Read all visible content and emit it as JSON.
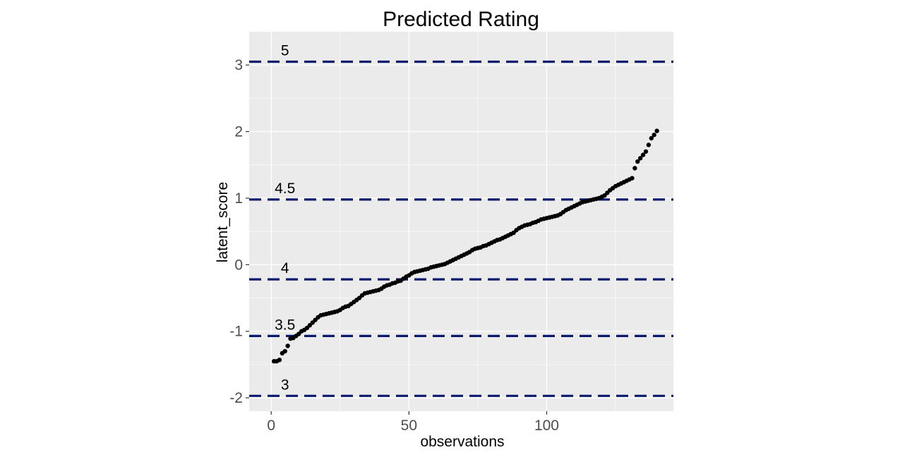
{
  "chart_data": {
    "type": "scatter",
    "title": "Predicted Rating",
    "xlabel": "observations",
    "ylabel": "latent_score",
    "xlim": [
      -8,
      146
    ],
    "ylim": [
      -2.2,
      3.5
    ],
    "x_ticks": [
      0,
      50,
      100
    ],
    "x_tick_labels": [
      "0",
      "50",
      "100"
    ],
    "y_ticks": [
      -2,
      -1,
      0,
      1,
      2,
      3
    ],
    "y_tick_labels": [
      "-2",
      "-1",
      "0",
      "1",
      "2",
      "3"
    ],
    "grid": true,
    "legend": "none",
    "point_color": "#000000",
    "threshold_color": "#0a1a6e",
    "panel_background": "#ebebeb",
    "thresholds": [
      {
        "label": "3",
        "y": -1.97
      },
      {
        "label": "3.5",
        "y": -1.07
      },
      {
        "label": "4",
        "y": -0.22
      },
      {
        "label": "4.5",
        "y": 0.98
      },
      {
        "label": "5",
        "y": 3.05
      }
    ],
    "series": [
      {
        "x": [
          1,
          2,
          3,
          4,
          5,
          6,
          7,
          8,
          9,
          10,
          11,
          12,
          13,
          14,
          15,
          16,
          17,
          18,
          19,
          20,
          21,
          22,
          23,
          24,
          25,
          26,
          27,
          28,
          29,
          30,
          31,
          32,
          33,
          34,
          35,
          36,
          37,
          38,
          39,
          40,
          41,
          42,
          43,
          44,
          45,
          46,
          47,
          48,
          49,
          50,
          51,
          52,
          53,
          54,
          55,
          56,
          57,
          58,
          59,
          60,
          61,
          62,
          63,
          64,
          65,
          66,
          67,
          68,
          69,
          70,
          71,
          72,
          73,
          74,
          75,
          76,
          77,
          78,
          79,
          80,
          81,
          82,
          83,
          84,
          85,
          86,
          87,
          88,
          89,
          90,
          91,
          92,
          93,
          94,
          95,
          96,
          97,
          98,
          99,
          100,
          101,
          102,
          103,
          104,
          105,
          106,
          107,
          108,
          109,
          110,
          111,
          112,
          113,
          114,
          115,
          116,
          117,
          118,
          119,
          120,
          121,
          122,
          123,
          124,
          125,
          126,
          127,
          128,
          129,
          130,
          131,
          132,
          133,
          134,
          135,
          136,
          137,
          138,
          139,
          140
        ],
        "y": [
          -1.45,
          -1.45,
          -1.43,
          -1.33,
          -1.3,
          -1.22,
          -1.11,
          -1.1,
          -1.07,
          -1.04,
          -1.0,
          -0.98,
          -0.95,
          -0.91,
          -0.87,
          -0.83,
          -0.79,
          -0.76,
          -0.75,
          -0.74,
          -0.73,
          -0.72,
          -0.71,
          -0.7,
          -0.68,
          -0.65,
          -0.63,
          -0.62,
          -0.59,
          -0.56,
          -0.53,
          -0.5,
          -0.46,
          -0.43,
          -0.42,
          -0.41,
          -0.4,
          -0.39,
          -0.38,
          -0.36,
          -0.33,
          -0.31,
          -0.3,
          -0.28,
          -0.27,
          -0.25,
          -0.24,
          -0.21,
          -0.18,
          -0.16,
          -0.13,
          -0.11,
          -0.1,
          -0.09,
          -0.08,
          -0.07,
          -0.06,
          -0.04,
          -0.03,
          -0.02,
          -0.01,
          0.0,
          0.01,
          0.03,
          0.05,
          0.07,
          0.09,
          0.11,
          0.13,
          0.15,
          0.17,
          0.19,
          0.22,
          0.24,
          0.25,
          0.26,
          0.28,
          0.29,
          0.31,
          0.33,
          0.35,
          0.37,
          0.38,
          0.4,
          0.42,
          0.44,
          0.46,
          0.48,
          0.52,
          0.55,
          0.57,
          0.59,
          0.6,
          0.61,
          0.63,
          0.64,
          0.66,
          0.68,
          0.69,
          0.7,
          0.71,
          0.72,
          0.73,
          0.74,
          0.76,
          0.79,
          0.82,
          0.84,
          0.86,
          0.88,
          0.9,
          0.92,
          0.94,
          0.95,
          0.96,
          0.97,
          0.98,
          0.99,
          1.0,
          1.02,
          1.04,
          1.08,
          1.12,
          1.15,
          1.18,
          1.2,
          1.22,
          1.24,
          1.26,
          1.28,
          1.3,
          1.45,
          1.55,
          1.6,
          1.65,
          1.7,
          1.8,
          1.9,
          1.95,
          2.01
        ]
      }
    ]
  }
}
